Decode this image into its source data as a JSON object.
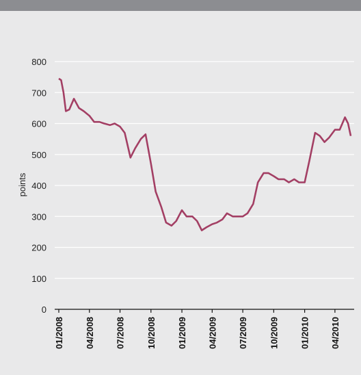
{
  "chart_data": {
    "type": "line",
    "title": "",
    "xlabel": "",
    "ylabel": "points",
    "ylim": [
      0,
      800
    ],
    "yticks": [
      0,
      100,
      200,
      300,
      400,
      500,
      600,
      700,
      800
    ],
    "xticks": [
      "01/2008",
      "04/2008",
      "07/2008",
      "10/2008",
      "01/2009",
      "04/2009",
      "07/2009",
      "10/2009",
      "01/2010",
      "04/2010"
    ],
    "grid": true,
    "legend": "none",
    "colors": {
      "line": "#a33f64",
      "grid": "#ffffff",
      "background": "#e9e9ea",
      "header": "#8c8d91"
    },
    "series": [
      {
        "x": [
          "2008-01-01",
          "2008-01-08",
          "2008-01-15",
          "2008-01-22",
          "2008-02-01",
          "2008-02-15",
          "2008-03-01",
          "2008-03-15",
          "2008-04-01",
          "2008-04-15",
          "2008-05-01",
          "2008-05-15",
          "2008-06-01",
          "2008-06-15",
          "2008-07-01",
          "2008-07-15",
          "2008-08-01",
          "2008-08-15",
          "2008-09-01",
          "2008-09-15",
          "2008-10-01",
          "2008-10-15",
          "2008-11-01",
          "2008-11-15",
          "2008-12-01",
          "2008-12-15",
          "2009-01-01",
          "2009-01-15",
          "2009-02-01",
          "2009-02-15",
          "2009-03-01",
          "2009-03-15",
          "2009-04-01",
          "2009-04-15",
          "2009-05-01",
          "2009-05-15",
          "2009-06-01",
          "2009-06-15",
          "2009-07-01",
          "2009-07-15",
          "2009-08-01",
          "2009-08-15",
          "2009-09-01",
          "2009-09-15",
          "2009-10-01",
          "2009-10-15",
          "2009-11-01",
          "2009-11-15",
          "2009-12-01",
          "2009-12-15",
          "2010-01-01",
          "2010-01-15",
          "2010-02-01",
          "2010-02-15",
          "2010-03-01",
          "2010-03-15",
          "2010-04-01",
          "2010-04-15",
          "2010-05-01",
          "2010-05-10",
          "2010-05-18"
        ],
        "y": [
          745,
          740,
          700,
          640,
          645,
          680,
          650,
          640,
          625,
          605,
          605,
          600,
          595,
          600,
          590,
          570,
          490,
          520,
          550,
          565,
          470,
          380,
          330,
          280,
          270,
          285,
          320,
          300,
          300,
          285,
          255,
          265,
          275,
          280,
          290,
          310,
          300,
          300,
          300,
          310,
          340,
          410,
          440,
          440,
          430,
          420,
          420,
          410,
          420,
          410,
          410,
          480,
          570,
          560,
          540,
          555,
          580,
          580,
          620,
          600,
          560
        ]
      }
    ]
  }
}
